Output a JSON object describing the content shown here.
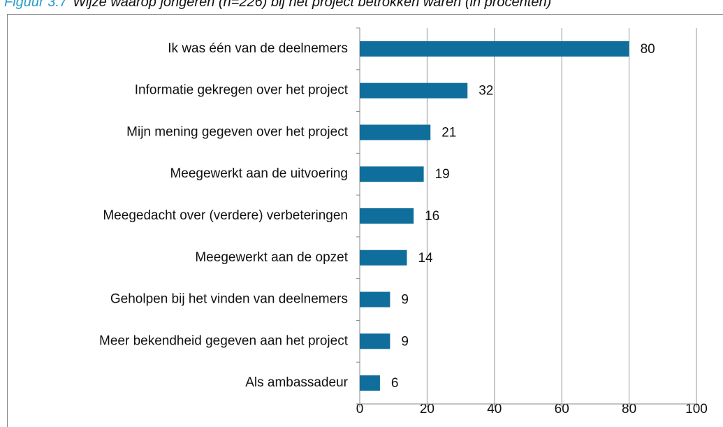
{
  "chart_data": {
    "type": "bar",
    "orientation": "horizontal",
    "figure_label": "Figuur 3.7",
    "title": "Wijze waarop jongeren (n=226) bij het project betrokken waren (in procenten)",
    "categories": [
      "Ik was één van de deelnemers",
      "Informatie gekregen over het project",
      "Mijn mening gegeven over het project",
      "Meegewerkt aan de uitvoering",
      "Meegedacht  over (verdere) verbeteringen",
      "Meegewerkt aan de opzet",
      "Geholpen bij het vinden van deelnemers",
      "Meer bekendheid gegeven aan het project",
      "Als ambassadeur"
    ],
    "values": [
      80,
      32,
      21,
      19,
      16,
      14,
      9,
      9,
      6
    ],
    "color": "#0f6e9b",
    "xlim": [
      0,
      100
    ],
    "xticks": [
      0,
      20,
      40,
      60,
      80,
      100
    ],
    "grid": true
  }
}
